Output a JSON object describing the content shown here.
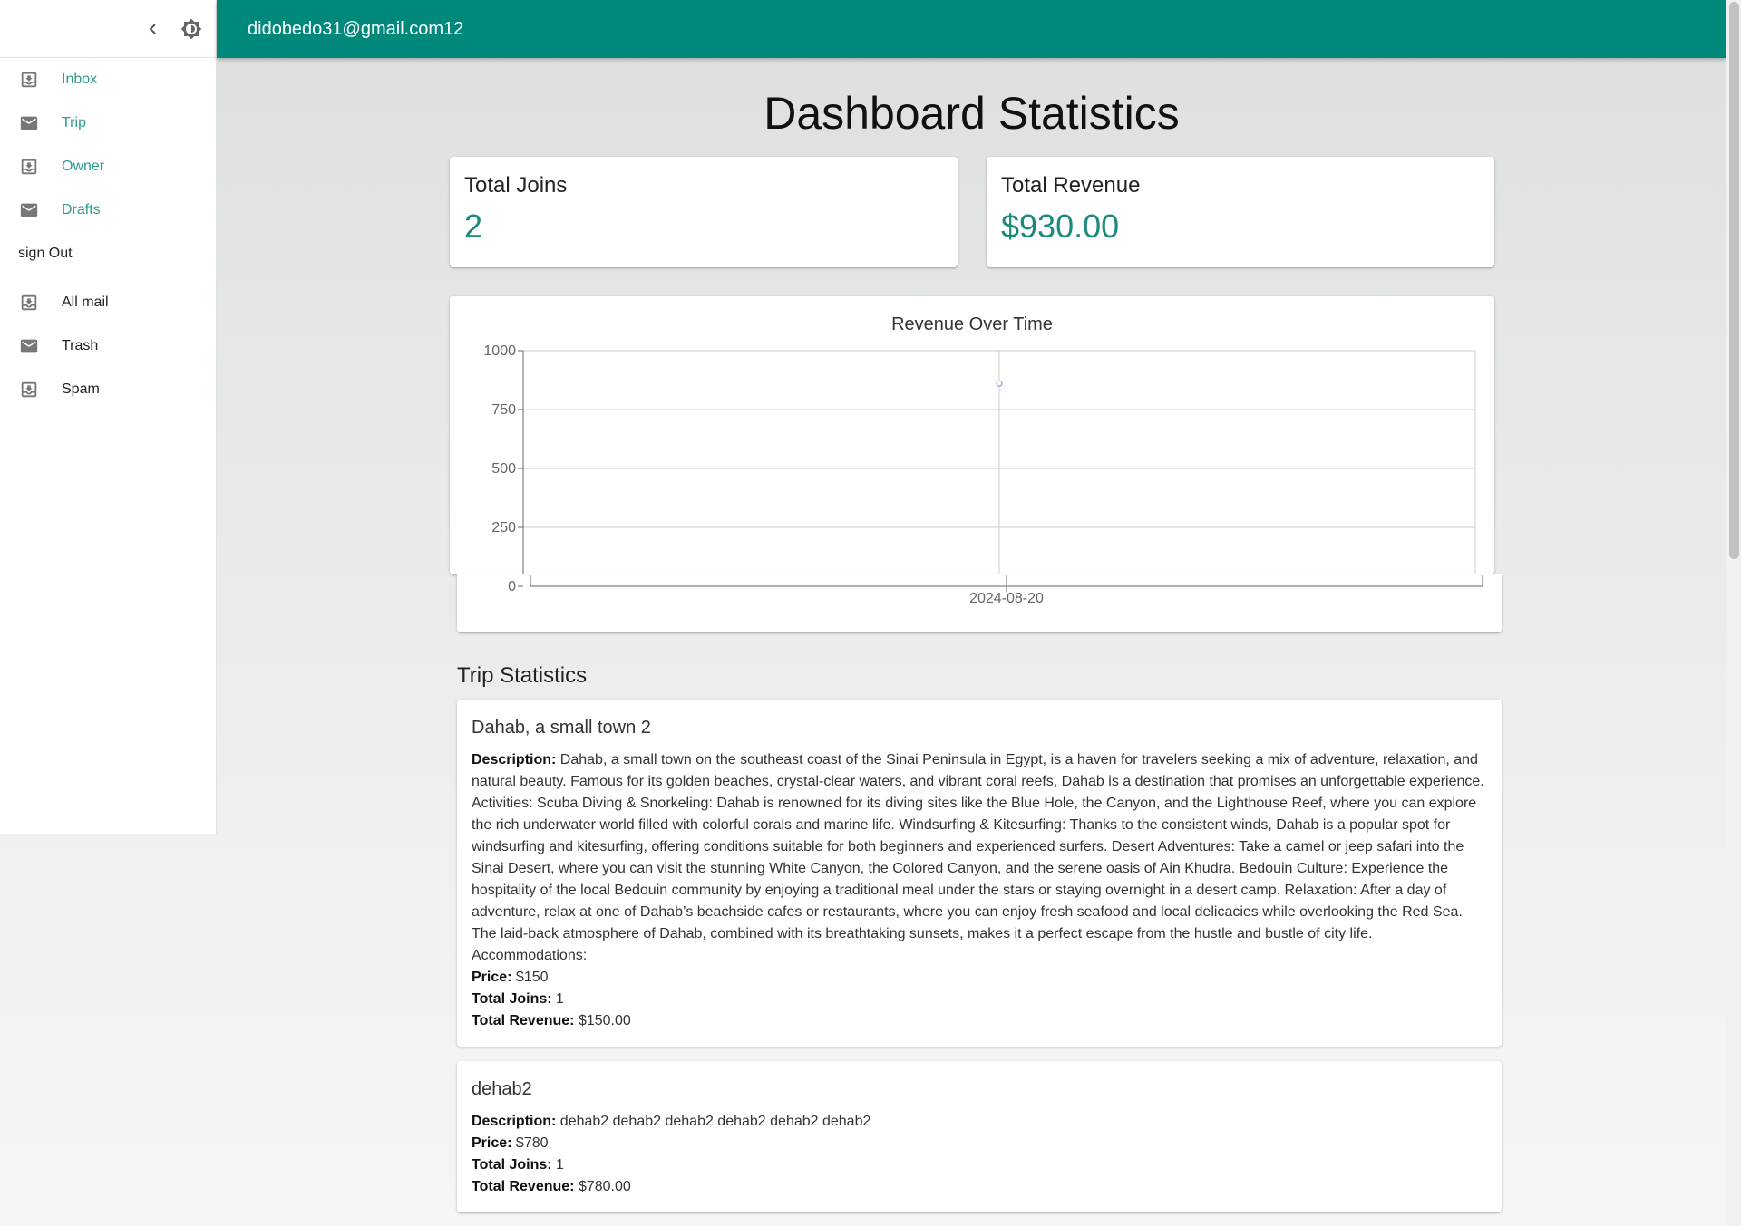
{
  "header": {
    "user_email": "didobedo31@gmail.com12"
  },
  "sidebar": {
    "primary": [
      {
        "label": "Inbox",
        "icon": "inbox-icon"
      },
      {
        "label": "Trip",
        "icon": "mail-icon"
      },
      {
        "label": "Owner",
        "icon": "inbox-icon"
      },
      {
        "label": "Drafts",
        "icon": "mail-icon"
      }
    ],
    "sign_out": "sign Out",
    "secondary": [
      {
        "label": "All mail",
        "icon": "inbox-icon"
      },
      {
        "label": "Trash",
        "icon": "mail-icon"
      },
      {
        "label": "Spam",
        "icon": "inbox-icon"
      }
    ],
    "accent_color": "#2a9d8f"
  },
  "main": {
    "title": "Dashboard Statistics",
    "stats": [
      {
        "label": "Total Joins",
        "value": "2"
      },
      {
        "label": "Total Revenue",
        "value": "$930.00"
      }
    ],
    "section_title": "Trip Statistics",
    "field_labels": {
      "description": "Description:",
      "price": "Price:",
      "joins": "Total Joins:",
      "revenue": "Total Revenue:"
    },
    "trips": [
      {
        "name": "Dahab, a small town 2",
        "description": "Dahab, a small town on the southeast coast of the Sinai Peninsula in Egypt, is a haven for travelers seeking a mix of adventure, relaxation, and natural beauty. Famous for its golden beaches, crystal-clear waters, and vibrant coral reefs, Dahab is a destination that promises an unforgettable experience. Activities: Scuba Diving & Snorkeling: Dahab is renowned for its diving sites like the Blue Hole, the Canyon, and the Lighthouse Reef, where you can explore the rich underwater world filled with colorful corals and marine life. Windsurfing & Kitesurfing: Thanks to the consistent winds, Dahab is a popular spot for windsurfing and kitesurfing, offering conditions suitable for both beginners and experienced surfers. Desert Adventures: Take a camel or jeep safari into the Sinai Desert, where you can visit the stunning White Canyon, the Colored Canyon, and the serene oasis of Ain Khudra. Bedouin Culture: Experience the hospitality of the local Bedouin community by enjoying a traditional meal under the stars or staying overnight in a desert camp. Relaxation: After a day of adventure, relax at one of Dahab’s beachside cafes or restaurants, where you can enjoy fresh seafood and local delicacies while overlooking the Red Sea. The laid-back atmosphere of Dahab, combined with its breathtaking sunsets, makes it a perfect escape from the hustle and bustle of city life. Accommodations:",
        "price": "$150",
        "joins": "1",
        "revenue": "$150.00"
      },
      {
        "name": "dehab2",
        "description": "dehab2 dehab2 dehab2 dehab2 dehab2 dehab2",
        "price": "$780",
        "joins": "1",
        "revenue": "$780.00"
      }
    ]
  },
  "chart_data": {
    "type": "line",
    "title": "Revenue Over Time",
    "x": [
      "2024-08-20"
    ],
    "series": [
      {
        "values": [
          930
        ]
      }
    ],
    "ylim": [
      0,
      1000
    ],
    "yticks": [
      0,
      250,
      500,
      750,
      1000
    ],
    "grid": true,
    "line_color": "#8884d8"
  },
  "colors": {
    "topbar": "#00897b",
    "stat_value": "#1b8a7c"
  }
}
